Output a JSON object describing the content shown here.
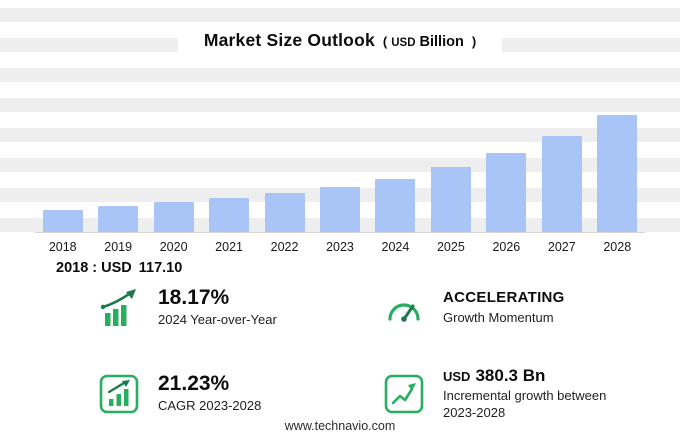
{
  "title": {
    "main": "Market Size Outlook",
    "paren_open": "(",
    "unit_currency": "USD",
    "unit_label": "Billion",
    "paren_close": ")"
  },
  "chart_data": {
    "type": "bar",
    "title": "Market Size Outlook (USD Billion)",
    "categories": [
      "2018",
      "2019",
      "2020",
      "2021",
      "2022",
      "2023",
      "2024",
      "2025",
      "2026",
      "2027",
      "2028"
    ],
    "values": [
      117.1,
      134.6,
      154.7,
      177.9,
      204.4,
      235.0,
      277.7,
      338.8,
      413.3,
      504.3,
      615.3
    ],
    "ylabel": "USD Billion",
    "ylim": [
      0,
      650
    ],
    "bar_color": "#a9c5f8",
    "grid": "horizontal-stripes",
    "legend": "none"
  },
  "baseline": {
    "label": "2018 : USD",
    "value": "117.10"
  },
  "stats": [
    {
      "icon": "yoy-bars-arrow-icon",
      "value": "18.17%",
      "label": "2024 Year-over-Year"
    },
    {
      "icon": "momentum-gauge-icon",
      "value": "ACCELERATING",
      "label": "Growth Momentum"
    },
    {
      "icon": "cagr-bars-icon",
      "value": "21.23%",
      "label": "CAGR 2023-2028"
    },
    {
      "icon": "incremental-growth-icon",
      "value_currency": "USD",
      "value": "380.3 Bn",
      "label": "Incremental growth between 2023-2028"
    }
  ],
  "footer": {
    "url": "www.technavio.com"
  },
  "colors": {
    "bar": "#a9c5f8",
    "green": "#27ae60",
    "green_dark": "#1b7a4b",
    "stripe": "#eeeeee",
    "text": "#111111"
  }
}
